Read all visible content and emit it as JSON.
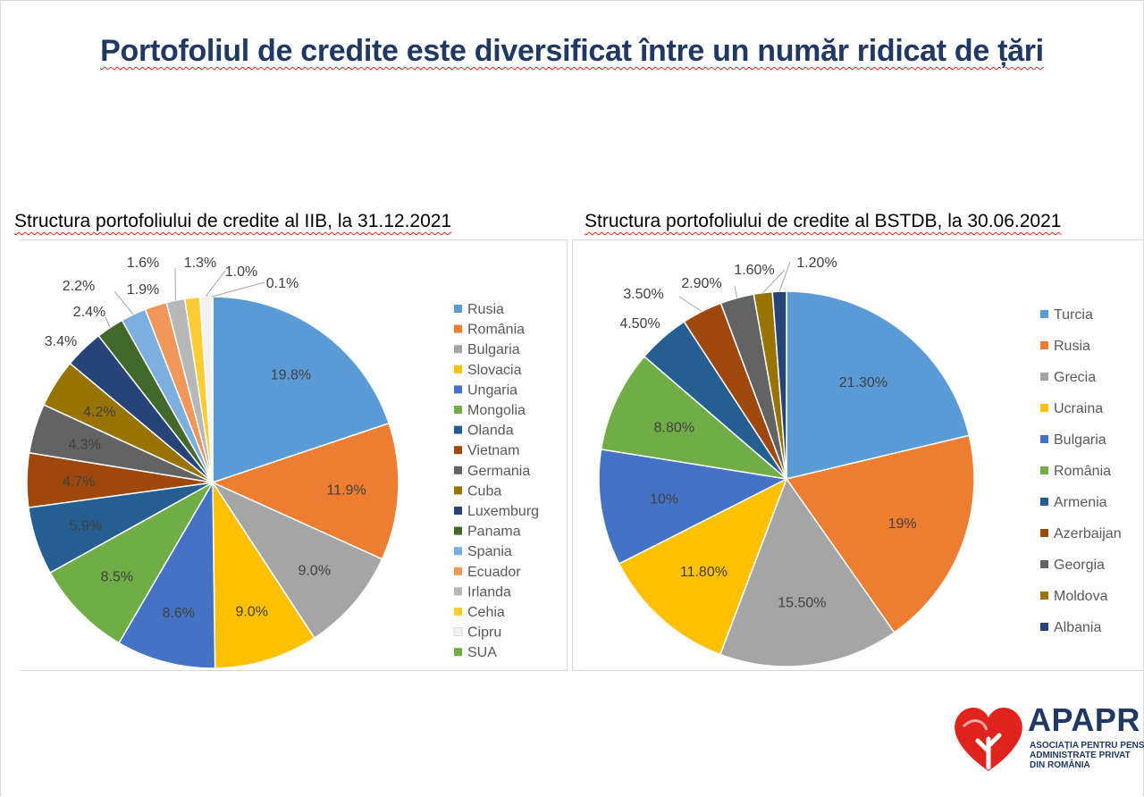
{
  "page": {
    "title": "Portofoliul de credite este diversificat între un număr ridicat de țări"
  },
  "logo": {
    "name": "APAPR",
    "subtitle_lines": [
      "ASOCIAȚIA PENTRU PENSIILE",
      "ADMINISTRATE PRIVAT",
      "DIN ROMÂNIA"
    ]
  },
  "chart_data": [
    {
      "type": "pie",
      "title": "Structura portofoliului de credite al IIB, la 31.12.2021",
      "legend_position": "right",
      "start": "top, clockwise",
      "slices": [
        {
          "label": "Rusia",
          "value": 19.8,
          "display": "19.8%",
          "color": "#5b9bd5"
        },
        {
          "label": "România",
          "value": 11.9,
          "display": "11.9%",
          "color": "#ed7d31"
        },
        {
          "label": "Bulgaria",
          "value": 9.0,
          "display": "9.0%",
          "color": "#a5a5a5"
        },
        {
          "label": "Slovacia",
          "value": 9.0,
          "display": "9.0%",
          "color": "#ffc000"
        },
        {
          "label": "Ungaria",
          "value": 8.6,
          "display": "8.6%",
          "color": "#4472c4"
        },
        {
          "label": "Mongolia",
          "value": 8.5,
          "display": "8.5%",
          "color": "#70ad47"
        },
        {
          "label": "Olanda",
          "value": 5.9,
          "display": "5.9%",
          "color": "#255e91"
        },
        {
          "label": "Vietnam",
          "value": 4.7,
          "display": "4.7%",
          "color": "#9e480e"
        },
        {
          "label": "Germania",
          "value": 4.3,
          "display": "4.3%",
          "color": "#636363"
        },
        {
          "label": "Cuba",
          "value": 4.2,
          "display": "4.2%",
          "color": "#997300"
        },
        {
          "label": "Luxemburg",
          "value": 3.4,
          "display": "3.4%",
          "color": "#264478"
        },
        {
          "label": "Panama",
          "value": 2.4,
          "display": "2.4%",
          "color": "#43682b"
        },
        {
          "label": "Spania",
          "value": 2.2,
          "display": "2.2%",
          "color": "#7cafdd"
        },
        {
          "label": "Ecuador",
          "value": 1.9,
          "display": "1.9%",
          "color": "#f1975a"
        },
        {
          "label": "Irlanda",
          "value": 1.6,
          "display": "1.6%",
          "color": "#b7b7b7"
        },
        {
          "label": "Cehia",
          "value": 1.3,
          "display": "1.3%",
          "color": "#ffcd33"
        },
        {
          "label": "Cipru",
          "value": 1.0,
          "display": "1.0%",
          "color": "#f2f2f2"
        },
        {
          "label": "SUA",
          "value": 0.1,
          "display": "0.1%",
          "color": "#70ad47"
        }
      ]
    },
    {
      "type": "pie",
      "title": "Structura portofoliului de credite al BSTDB, la 30.06.2021",
      "legend_position": "right",
      "start": "top, clockwise",
      "slices": [
        {
          "label": "Turcia",
          "value": 21.3,
          "display": "21.30%",
          "color": "#5b9bd5"
        },
        {
          "label": "Rusia",
          "value": 19,
          "display": "19%",
          "color": "#ed7d31"
        },
        {
          "label": "Grecia",
          "value": 15.5,
          "display": "15.50%",
          "color": "#a5a5a5"
        },
        {
          "label": "Ucraina",
          "value": 11.8,
          "display": "11.80%",
          "color": "#ffc000"
        },
        {
          "label": "Bulgaria",
          "value": 10,
          "display": "10%",
          "color": "#4472c4"
        },
        {
          "label": "România",
          "value": 8.8,
          "display": "8.80%",
          "color": "#70ad47"
        },
        {
          "label": "Armenia",
          "value": 4.5,
          "display": "4.50%",
          "color": "#255e91"
        },
        {
          "label": "Azerbaijan",
          "value": 3.5,
          "display": "3.50%",
          "color": "#9e480e"
        },
        {
          "label": "Georgia",
          "value": 2.9,
          "display": "2.90%",
          "color": "#636363"
        },
        {
          "label": "Moldova",
          "value": 1.6,
          "display": "1.60%",
          "color": "#997300"
        },
        {
          "label": "Albania",
          "value": 1.2,
          "display": "1.20%",
          "color": "#264478"
        }
      ]
    }
  ]
}
